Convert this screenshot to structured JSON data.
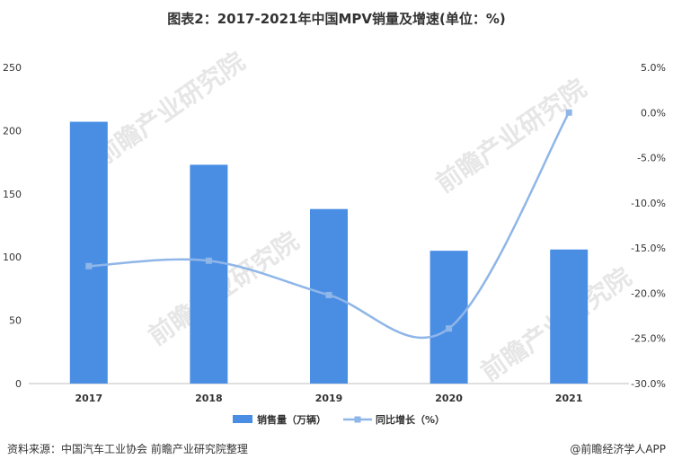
{
  "title": "图表2：2017-2021年中国MPV销量及增速(单位：%)",
  "watermark": "前瞻产业研究院",
  "footer": {
    "source": "资料来源：中国汽车工业协会 前瞻产业研究院整理",
    "brand": "@前瞻经济学人APP"
  },
  "colors": {
    "bar": "#4a8ee4",
    "line": "#8fb6e8",
    "axis": "#bfbfbf",
    "text": "#333333"
  },
  "chart_data": {
    "type": "bar",
    "categories": [
      "2017",
      "2018",
      "2019",
      "2020",
      "2021"
    ],
    "series": [
      {
        "name": "销售量（万辆）",
        "type": "bar",
        "axis": "left",
        "values": [
          207,
          173,
          138,
          105,
          106
        ]
      },
      {
        "name": "同比增长（%）",
        "type": "line",
        "axis": "right",
        "values": [
          -17.0,
          -16.4,
          -20.2,
          -23.9,
          0.0
        ]
      }
    ],
    "left_axis": {
      "ylim": [
        0,
        250
      ],
      "ticks": [
        "0",
        "50",
        "100",
        "150",
        "200",
        "250"
      ]
    },
    "right_axis": {
      "ylim": [
        -30,
        5
      ],
      "ticks": [
        "-30.0%",
        "-25.0%",
        "-20.0%",
        "-15.0%",
        "-10.0%",
        "-5.0%",
        "0.0%",
        "5.0%"
      ]
    },
    "legend_position": "bottom",
    "grid": false
  }
}
